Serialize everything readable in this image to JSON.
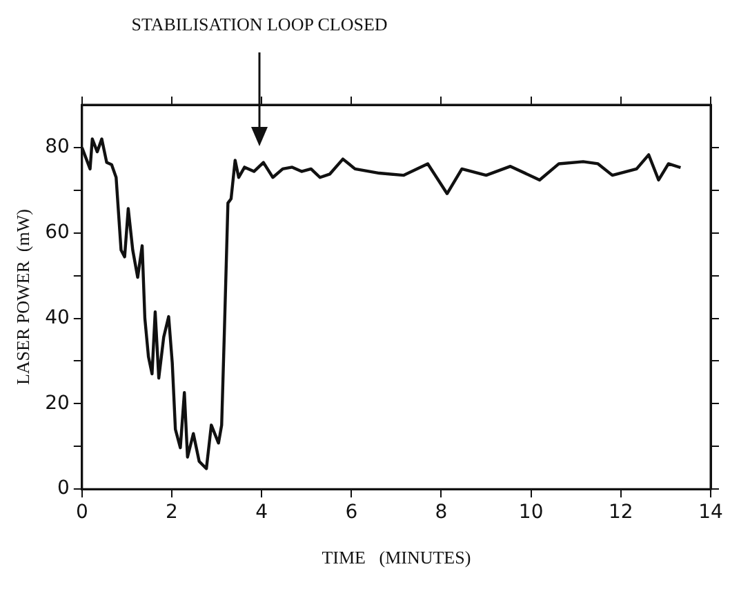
{
  "chart_data": {
    "type": "line",
    "xlabel": "TIME   (MINUTES)",
    "ylabel": "LASER POWER  (mW)",
    "annotations": [
      "STABILISATION LOOP CLOSED"
    ],
    "xlim": [
      0,
      14
    ],
    "xticks": [
      0,
      2,
      4,
      6,
      8,
      10,
      12,
      14
    ],
    "ylim": [
      0,
      90
    ],
    "yticks": [
      0,
      {
        "value": 10,
        "label": null
      },
      20,
      {
        "value": 30,
        "label": null
      },
      40,
      {
        "value": 50,
        "label": null
      },
      60,
      {
        "value": 70,
        "label": null
      },
      80
    ],
    "grid": false,
    "legend": false,
    "marker": "none",
    "line_style": "solid",
    "series": [
      {
        "color": "#111111",
        "x": [
          0,
          0.18,
          0.23,
          0.34,
          0.44,
          0.55,
          0.66,
          0.76,
          0.87,
          0.95,
          1.03,
          1.13,
          1.24,
          1.34,
          1.4,
          1.48,
          1.56,
          1.63,
          1.71,
          1.82,
          1.93,
          2.01,
          2.08,
          2.19,
          2.28,
          2.35,
          2.48,
          2.61,
          2.77,
          2.88,
          3.04,
          3.11,
          3.17,
          3.25,
          3.32,
          3.41,
          3.49,
          3.62,
          3.83,
          4.04,
          4.25,
          4.47,
          4.68,
          4.89,
          5.1,
          5.3,
          5.52,
          5.81,
          6.08,
          6.62,
          7.16,
          7.7,
          8.13,
          8.46,
          9.0,
          9.54,
          10.19,
          10.62,
          11.16,
          11.49,
          11.81,
          12.35,
          12.62,
          12.84,
          13.06,
          13.33
        ],
        "values": [
          80,
          75,
          82,
          79,
          82,
          76.5,
          76,
          73,
          56,
          54.4,
          65.7,
          56,
          49.6,
          57,
          40,
          31,
          27,
          41.5,
          26,
          35.6,
          40.4,
          29.6,
          14,
          9.7,
          22.6,
          7.5,
          13,
          6.5,
          4.8,
          15,
          10.8,
          15,
          36.6,
          67,
          68,
          77,
          73,
          75.4,
          74.4,
          76.5,
          73,
          75,
          75.4,
          74.4,
          75,
          73,
          73.8,
          77.3,
          75,
          74,
          73.5,
          76.2,
          69.2,
          75,
          73.5,
          75.6,
          72.4,
          76.2,
          76.7,
          76.2,
          73.5,
          75,
          78.3,
          72.4,
          76.2,
          75.3
        ]
      }
    ]
  }
}
